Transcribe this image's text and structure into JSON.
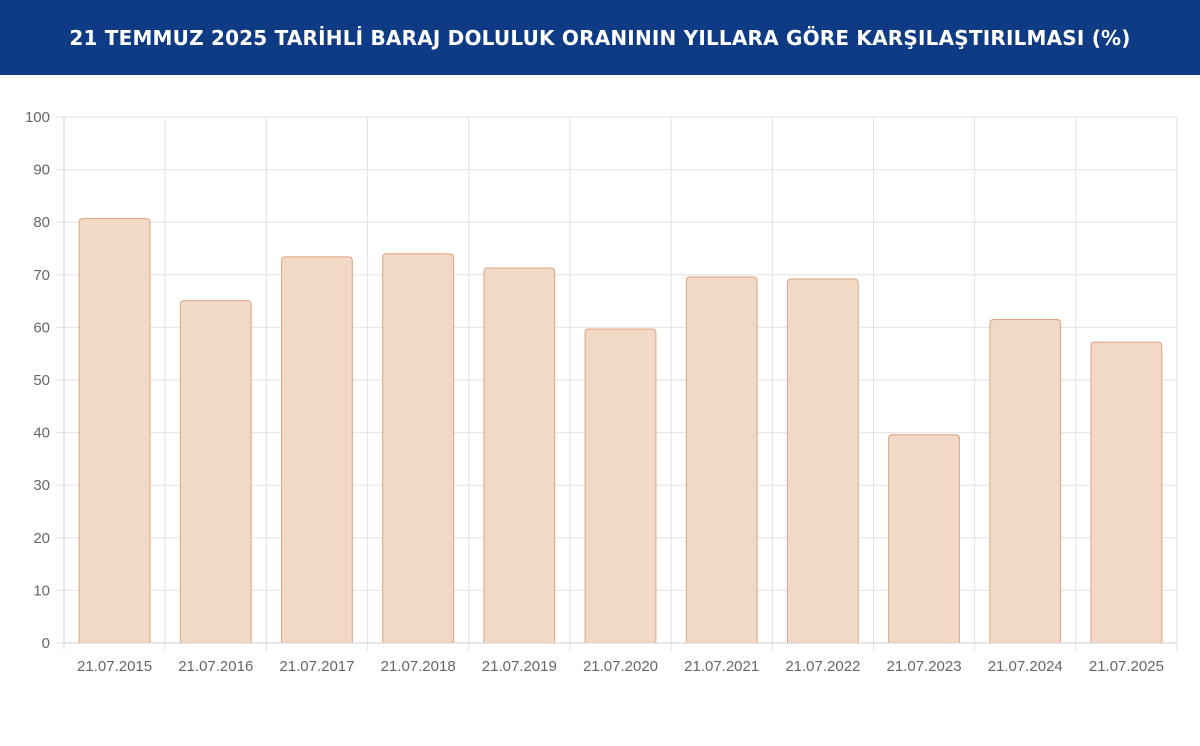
{
  "header": {
    "title": "21 TEMMUZ 2025 TARİHLİ BARAJ DOLULUK ORANININ YILLARA GÖRE KARŞILAŞTIRILMASI (%)"
  },
  "colors": {
    "header_bg": "#0f3b85",
    "bar_fill": "#f2d8c7",
    "bar_stroke": "#e0a47c",
    "grid": "#e2e2e2",
    "tick_text": "#666666"
  },
  "chart_data": {
    "type": "bar",
    "title": "21 TEMMUZ 2025 TARİHLİ BARAJ DOLULUK ORANININ YILLARA GÖRE KARŞILAŞTIRILMASI (%)",
    "categories": [
      "21.07.2015",
      "21.07.2016",
      "21.07.2017",
      "21.07.2018",
      "21.07.2019",
      "21.07.2020",
      "21.07.2021",
      "21.07.2022",
      "21.07.2023",
      "21.07.2024",
      "21.07.2025"
    ],
    "values": [
      80.7,
      65.1,
      73.4,
      74.0,
      71.3,
      59.7,
      69.6,
      69.2,
      39.6,
      61.5,
      57.2
    ],
    "ylim": [
      0,
      100
    ],
    "yticks": [
      0,
      10,
      20,
      30,
      40,
      50,
      60,
      70,
      80,
      90,
      100
    ],
    "grid": true,
    "legend": "none",
    "xlabel": "",
    "ylabel": ""
  }
}
